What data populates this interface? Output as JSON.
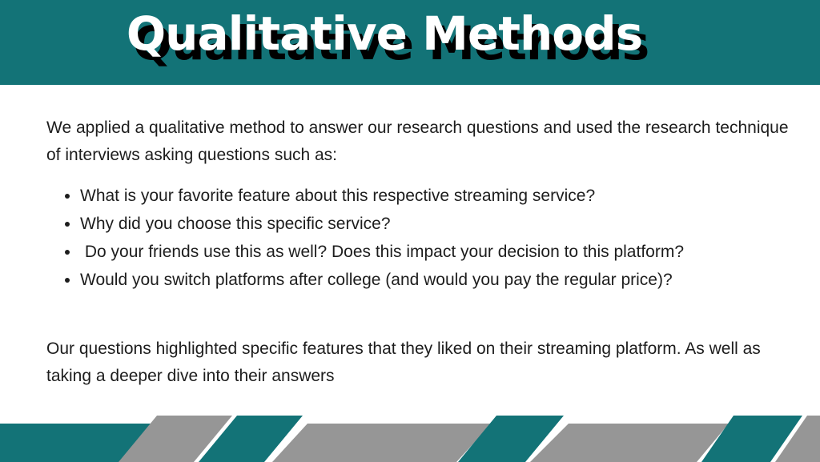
{
  "slide": {
    "title": "Qualitative Methods",
    "intro": "We applied a qualitative method to answer our research questions and used the research technique of interviews asking questions such as:",
    "questions": [
      "What is your favorite feature about this respective streaming service?",
      "Why did you choose this specific service?",
      " Do your friends use this as well? Does this impact your decision to this platform?",
      "Would you switch platforms after college (and would you pay the regular price)?"
    ],
    "conclusion": "Our questions highlighted specific features that they liked on their streaming platform. As well as taking a deeper dive into their answers"
  },
  "colors": {
    "teal": "#137377",
    "gray": "#969696",
    "title_text": "#ffffff",
    "title_shadow": "#000000",
    "body_text": "#1d1d1d"
  }
}
